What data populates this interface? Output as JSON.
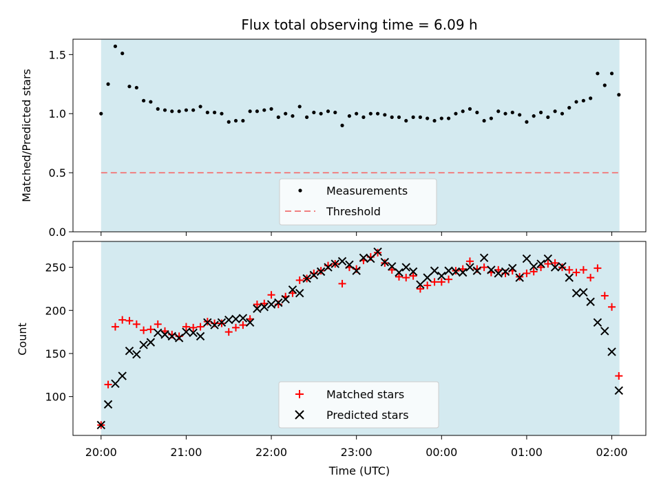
{
  "chart_data": [
    {
      "type": "scatter",
      "title": "Flux total observing time = 6.09 h",
      "xlabel": "",
      "ylabel": "Matched/Predicted stars",
      "ylim": [
        0,
        1.63
      ],
      "yticks": [
        "0.0",
        "0.5",
        "1.0",
        "1.5"
      ],
      "ytick_values": [
        0,
        0.5,
        1.0,
        1.5
      ],
      "shaded_region": {
        "x_start_hours": 0.0,
        "x_end_hours": 6.09,
        "color": "#d4eaf0"
      },
      "threshold": {
        "name": "Threshold",
        "value": 0.5,
        "color": "#f08080"
      },
      "series": [
        {
          "name": "Measurements",
          "marker": "dot",
          "color": "#000000",
          "x": [
            0.0,
            0.083,
            0.167,
            0.25,
            0.333,
            0.417,
            0.5,
            0.583,
            0.667,
            0.75,
            0.833,
            0.917,
            1.0,
            1.083,
            1.167,
            1.25,
            1.333,
            1.417,
            1.5,
            1.583,
            1.667,
            1.75,
            1.833,
            1.917,
            2.0,
            2.083,
            2.167,
            2.25,
            2.333,
            2.417,
            2.5,
            2.583,
            2.667,
            2.75,
            2.833,
            2.917,
            3.0,
            3.083,
            3.167,
            3.25,
            3.333,
            3.417,
            3.5,
            3.583,
            3.667,
            3.75,
            3.833,
            3.917,
            4.0,
            4.083,
            4.167,
            4.25,
            4.333,
            4.417,
            4.5,
            4.583,
            4.667,
            4.75,
            4.833,
            4.917,
            5.0,
            5.083,
            5.167,
            5.25,
            5.333,
            5.417,
            5.5,
            5.583,
            5.667,
            5.75,
            5.833,
            5.917,
            6.0,
            6.083
          ],
          "y": [
            1.0,
            1.25,
            1.57,
            1.51,
            1.23,
            1.22,
            1.11,
            1.1,
            1.04,
            1.03,
            1.02,
            1.02,
            1.03,
            1.03,
            1.06,
            1.01,
            1.01,
            1.0,
            0.93,
            0.94,
            0.94,
            1.02,
            1.02,
            1.03,
            1.04,
            0.97,
            1.0,
            0.98,
            1.06,
            0.97,
            1.01,
            1.0,
            1.02,
            1.01,
            0.9,
            0.98,
            1.0,
            0.97,
            1.0,
            1.0,
            0.99,
            0.97,
            0.97,
            0.94,
            0.97,
            0.97,
            0.96,
            0.94,
            0.96,
            0.96,
            1.0,
            1.02,
            1.04,
            1.01,
            0.94,
            0.96,
            1.02,
            1.0,
            1.01,
            0.99,
            0.93,
            0.98,
            1.01,
            0.97,
            1.02,
            1.0,
            1.05,
            1.1,
            1.11,
            1.13,
            1.34,
            1.24,
            1.34,
            1.16
          ]
        }
      ],
      "legend": {
        "placement": "lower center",
        "entries": [
          "Measurements",
          "Threshold"
        ]
      }
    },
    {
      "type": "scatter",
      "title": "",
      "xlabel": "Time (UTC)",
      "ylabel": "Count",
      "ylim": [
        55,
        280
      ],
      "yticks": [
        "100",
        "150",
        "200",
        "250"
      ],
      "ytick_values": [
        100,
        150,
        200,
        250
      ],
      "xticks": [
        "20:00",
        "21:00",
        "22:00",
        "23:00",
        "00:00",
        "01:00",
        "02:00"
      ],
      "xtick_values_hours": [
        0,
        1,
        2,
        3,
        4,
        5,
        6
      ],
      "xlim_hours": [
        -0.33,
        6.4
      ],
      "shaded_region": {
        "x_start_hours": 0.0,
        "x_end_hours": 6.09,
        "color": "#d4eaf0"
      },
      "series": [
        {
          "name": "Matched stars",
          "marker": "plus",
          "color": "#ff0000",
          "x": [
            0.0,
            0.083,
            0.167,
            0.25,
            0.333,
            0.417,
            0.5,
            0.583,
            0.667,
            0.75,
            0.833,
            0.917,
            1.0,
            1.083,
            1.167,
            1.25,
            1.333,
            1.417,
            1.5,
            1.583,
            1.667,
            1.75,
            1.833,
            1.917,
            2.0,
            2.083,
            2.167,
            2.25,
            2.333,
            2.417,
            2.5,
            2.583,
            2.667,
            2.75,
            2.833,
            2.917,
            3.0,
            3.083,
            3.167,
            3.25,
            3.333,
            3.417,
            3.5,
            3.583,
            3.667,
            3.75,
            3.833,
            3.917,
            4.0,
            4.083,
            4.167,
            4.25,
            4.333,
            4.417,
            4.5,
            4.583,
            4.667,
            4.75,
            4.833,
            4.917,
            5.0,
            5.083,
            5.167,
            5.25,
            5.333,
            5.417,
            5.5,
            5.583,
            5.667,
            5.75,
            5.833,
            5.917,
            6.0,
            6.083
          ],
          "y": [
            67,
            114,
            181,
            189,
            188,
            184,
            177,
            178,
            184,
            176,
            172,
            170,
            181,
            180,
            181,
            187,
            185,
            185,
            175,
            180,
            183,
            190,
            207,
            208,
            218,
            207,
            216,
            220,
            235,
            237,
            243,
            246,
            252,
            254,
            231,
            250,
            248,
            258,
            262,
            267,
            255,
            247,
            239,
            238,
            240,
            225,
            229,
            233,
            233,
            236,
            246,
            248,
            257,
            248,
            250,
            244,
            247,
            243,
            246,
            239,
            243,
            245,
            250,
            254,
            255,
            250,
            247,
            244,
            247,
            238,
            249,
            217,
            204,
            124
          ]
        },
        {
          "name": "Predicted stars",
          "marker": "x",
          "color": "#000000",
          "x": [
            0.0,
            0.083,
            0.167,
            0.25,
            0.333,
            0.417,
            0.5,
            0.583,
            0.667,
            0.75,
            0.833,
            0.917,
            1.0,
            1.083,
            1.167,
            1.25,
            1.333,
            1.417,
            1.5,
            1.583,
            1.667,
            1.75,
            1.833,
            1.917,
            2.0,
            2.083,
            2.167,
            2.25,
            2.333,
            2.417,
            2.5,
            2.583,
            2.667,
            2.75,
            2.833,
            2.917,
            3.0,
            3.083,
            3.167,
            3.25,
            3.333,
            3.417,
            3.5,
            3.583,
            3.667,
            3.75,
            3.833,
            3.917,
            4.0,
            4.083,
            4.167,
            4.25,
            4.333,
            4.417,
            4.5,
            4.583,
            4.667,
            4.75,
            4.833,
            4.917,
            5.0,
            5.083,
            5.167,
            5.25,
            5.333,
            5.417,
            5.5,
            5.583,
            5.667,
            5.75,
            5.833,
            5.917,
            6.0,
            6.083
          ],
          "y": [
            67,
            91,
            115,
            124,
            153,
            149,
            160,
            163,
            174,
            172,
            170,
            168,
            175,
            174,
            170,
            186,
            183,
            186,
            189,
            190,
            191,
            186,
            202,
            204,
            207,
            209,
            213,
            224,
            220,
            237,
            241,
            245,
            250,
            254,
            257,
            253,
            246,
            261,
            260,
            268,
            256,
            251,
            244,
            250,
            245,
            230,
            238,
            246,
            240,
            246,
            245,
            244,
            250,
            246,
            261,
            247,
            243,
            245,
            249,
            238,
            260,
            251,
            254,
            260,
            250,
            251,
            238,
            220,
            221,
            210,
            186,
            176,
            152,
            107
          ]
        }
      ],
      "legend": {
        "placement": "lower center",
        "entries": [
          "Matched stars",
          "Predicted stars"
        ]
      }
    }
  ]
}
